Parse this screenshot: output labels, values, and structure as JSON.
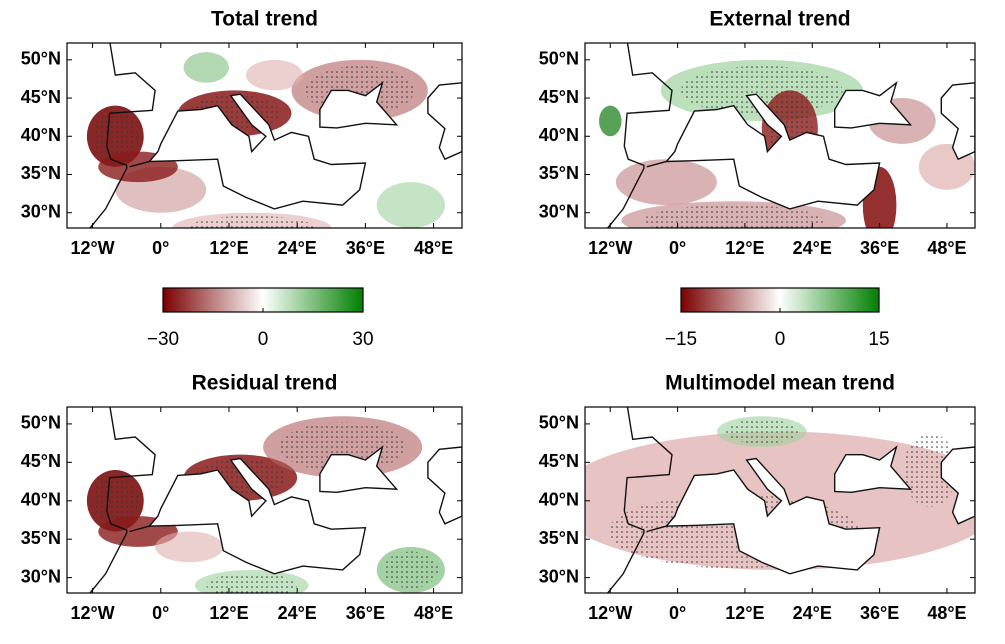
{
  "panels": [
    {
      "title": "Total trend",
      "xlim": [
        -16.5,
        53
      ],
      "ylim": [
        28,
        52.2
      ],
      "xticks": [
        {
          "value": -12,
          "label": "12°W"
        },
        {
          "value": 0,
          "label": "0°"
        },
        {
          "value": 12,
          "label": "12°E"
        },
        {
          "value": 24,
          "label": "24°E"
        },
        {
          "value": 36,
          "label": "36°E"
        },
        {
          "value": 48,
          "label": "48°E"
        }
      ],
      "yticks": [
        {
          "value": 30,
          "label": "30°N"
        },
        {
          "value": 35,
          "label": "35°N"
        },
        {
          "value": 40,
          "label": "40°N"
        },
        {
          "value": 45,
          "label": "45°N"
        },
        {
          "value": 50,
          "label": "50°N"
        }
      ]
    },
    {
      "title": "External trend",
      "xlim": [
        -16.5,
        53
      ],
      "ylim": [
        28,
        52.2
      ],
      "xticks": [
        {
          "value": -12,
          "label": "12°W"
        },
        {
          "value": 0,
          "label": "0°"
        },
        {
          "value": 12,
          "label": "12°E"
        },
        {
          "value": 24,
          "label": "24°E"
        },
        {
          "value": 36,
          "label": "36°E"
        },
        {
          "value": 48,
          "label": "48°E"
        }
      ],
      "yticks": [
        {
          "value": 30,
          "label": "30°N"
        },
        {
          "value": 35,
          "label": "35°N"
        },
        {
          "value": 40,
          "label": "40°N"
        },
        {
          "value": 45,
          "label": "45°N"
        },
        {
          "value": 50,
          "label": "50°N"
        }
      ]
    },
    {
      "title": "Residual trend",
      "xlim": [
        -16.5,
        53
      ],
      "ylim": [
        28,
        52.2
      ],
      "xticks": [
        {
          "value": -12,
          "label": "12°W"
        },
        {
          "value": 0,
          "label": "0°"
        },
        {
          "value": 12,
          "label": "12°E"
        },
        {
          "value": 24,
          "label": "24°E"
        },
        {
          "value": 36,
          "label": "36°E"
        },
        {
          "value": 48,
          "label": "48°E"
        }
      ],
      "yticks": [
        {
          "value": 30,
          "label": "30°N"
        },
        {
          "value": 35,
          "label": "35°N"
        },
        {
          "value": 40,
          "label": "40°N"
        },
        {
          "value": 45,
          "label": "45°N"
        },
        {
          "value": 50,
          "label": "50°N"
        }
      ]
    },
    {
      "title": "Multimodel mean trend",
      "xlim": [
        -16.5,
        53
      ],
      "ylim": [
        28,
        52.2
      ],
      "xticks": [
        {
          "value": -12,
          "label": "12°W"
        },
        {
          "value": 0,
          "label": "0°"
        },
        {
          "value": 12,
          "label": "12°E"
        },
        {
          "value": 24,
          "label": "24°E"
        },
        {
          "value": 36,
          "label": "36°E"
        },
        {
          "value": 48,
          "label": "48°E"
        }
      ],
      "yticks": [
        {
          "value": 30,
          "label": "30°N"
        },
        {
          "value": 35,
          "label": "35°N"
        },
        {
          "value": 40,
          "label": "40°N"
        },
        {
          "value": 45,
          "label": "45°N"
        },
        {
          "value": 50,
          "label": "50°N"
        }
      ]
    }
  ],
  "colorbars": [
    {
      "lim": [
        -30,
        30
      ],
      "colors": [
        "#7a0000",
        "#ffffff",
        "#008000"
      ],
      "ticks": [
        {
          "value": -30,
          "label": "−30"
        },
        0,
        30
      ]
    },
    {
      "lim": [
        -15,
        15
      ],
      "colors": [
        "#7a0000",
        "#ffffff",
        "#008000"
      ],
      "ticks": [
        {
          "value": -15,
          "label": "−15"
        },
        0,
        15
      ]
    }
  ]
}
